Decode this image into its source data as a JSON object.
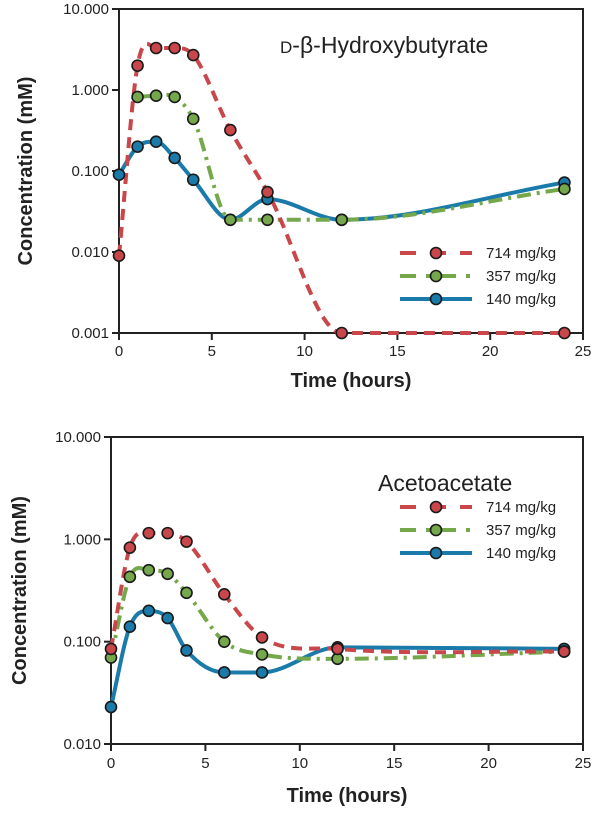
{
  "chart_data": [
    {
      "type": "line",
      "title": "D-β-Hydroxybutyrate",
      "title_smallcaps_prefix": "D",
      "title_rest": "-β-Hydroxybutyrate",
      "xlabel": "Time (hours)",
      "ylabel": "Concentration (mM)",
      "yscale": "log",
      "xlim": [
        0,
        25
      ],
      "ylim": [
        0.001,
        10
      ],
      "xticks": [
        0,
        5,
        10,
        15,
        20,
        25
      ],
      "xtick_labels": [
        "0",
        "5",
        "10",
        "15",
        "20",
        "25"
      ],
      "yticks": [
        0.001,
        0.01,
        0.1,
        1,
        10
      ],
      "ytick_labels": [
        "0.001",
        "0.010",
        "0.100",
        "1.000",
        "10.000"
      ],
      "grid": false,
      "legend_position": "bottom-right",
      "series": [
        {
          "name": "714 mg/kg",
          "color": "#c9474a",
          "style": "dashed",
          "x": [
            0,
            1,
            2,
            3,
            4,
            6,
            8,
            12,
            24
          ],
          "y": [
            0.009,
            2.0,
            3.3,
            3.3,
            2.7,
            0.32,
            0.055,
            0.001,
            0.001
          ]
        },
        {
          "name": "357 mg/kg",
          "color": "#74a84a",
          "style": "dash-dot",
          "x": [
            1,
            2,
            3,
            4,
            6,
            8,
            12,
            24
          ],
          "y": [
            0.82,
            0.85,
            0.82,
            0.44,
            0.025,
            0.025,
            0.025,
            0.06
          ]
        },
        {
          "name": "140 mg/kg",
          "color": "#1a7bab",
          "style": "solid",
          "x": [
            0,
            1,
            2,
            3,
            4,
            6,
            8,
            12,
            24
          ],
          "y": [
            0.09,
            0.2,
            0.23,
            0.145,
            0.078,
            0.025,
            0.045,
            0.025,
            0.072
          ]
        }
      ]
    },
    {
      "type": "line",
      "title": "Acetoacetate",
      "xlabel": "Time (hours)",
      "ylabel": "Concentration (mM)",
      "yscale": "log",
      "xlim": [
        0,
        25
      ],
      "ylim": [
        0.01,
        10
      ],
      "xticks": [
        0,
        5,
        10,
        15,
        20,
        25
      ],
      "xtick_labels": [
        "0",
        "5",
        "10",
        "15",
        "20",
        "25"
      ],
      "yticks": [
        0.01,
        0.1,
        1,
        10
      ],
      "ytick_labels": [
        "0.010",
        "0.100",
        "1.000",
        "10.000"
      ],
      "grid": false,
      "legend_position": "top-right",
      "series": [
        {
          "name": "714 mg/kg",
          "color": "#c9474a",
          "style": "dashed",
          "x": [
            0,
            1,
            2,
            3,
            4,
            6,
            8,
            12,
            24
          ],
          "y": [
            0.085,
            0.83,
            1.15,
            1.15,
            0.95,
            0.29,
            0.11,
            0.085,
            0.08
          ]
        },
        {
          "name": "357 mg/kg",
          "color": "#74a84a",
          "style": "dash-dot",
          "x": [
            0,
            1,
            2,
            3,
            4,
            6,
            8,
            12,
            24
          ],
          "y": [
            0.07,
            0.43,
            0.5,
            0.46,
            0.3,
            0.1,
            0.075,
            0.068,
            0.08
          ]
        },
        {
          "name": "140 mg/kg",
          "color": "#1a7bab",
          "style": "solid",
          "x": [
            0,
            1,
            2,
            3,
            4,
            6,
            8,
            12,
            24
          ],
          "y": [
            0.023,
            0.14,
            0.2,
            0.17,
            0.082,
            0.05,
            0.05,
            0.088,
            0.085
          ]
        }
      ]
    }
  ]
}
